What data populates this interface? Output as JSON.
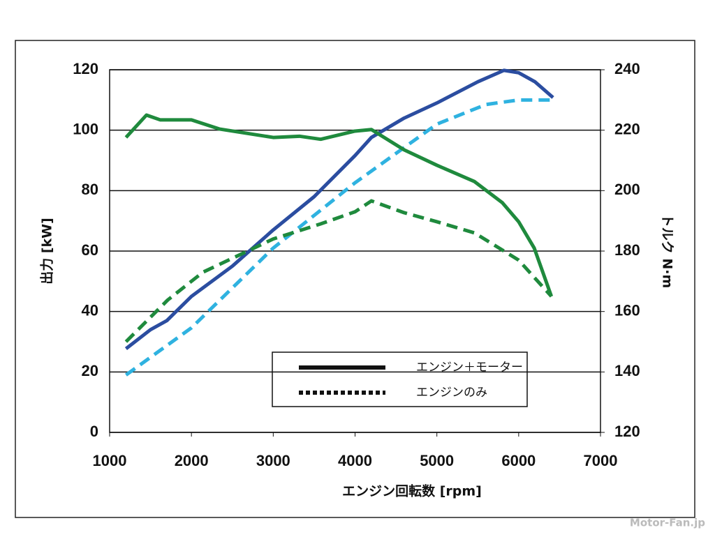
{
  "chart_data": {
    "type": "line",
    "xlabel": "エンジン回転数 [rpm]",
    "ylabel": "出力 [kW]",
    "y2label": "トルク N·m",
    "xlim": [
      1000,
      7000
    ],
    "xticks": [
      1000,
      2000,
      3000,
      4000,
      5000,
      6000,
      7000
    ],
    "ylim": [
      0,
      120
    ],
    "yticks": [
      0,
      20,
      40,
      60,
      80,
      100,
      120
    ],
    "y2lim": [
      120,
      240
    ],
    "y2ticks": [
      120,
      140,
      160,
      180,
      200,
      220,
      240
    ],
    "grid": true,
    "series": [
      {
        "color": "#2b4da0",
        "dashed": false,
        "axis": "y",
        "x": [
          1200,
          1500,
          1700,
          2000,
          2500,
          3000,
          3500,
          4000,
          4200,
          4600,
          5000,
          5500,
          5820,
          6000,
          6200,
          6420
        ],
        "values": [
          27.7,
          34,
          37,
          45,
          55,
          67,
          78,
          91.6,
          97.6,
          104,
          109,
          116,
          119.8,
          119,
          116,
          110.8
        ]
      },
      {
        "color": "#2fb2e0",
        "dashed": true,
        "axis": "y",
        "x": [
          1200,
          2000,
          3000,
          4000,
          5000,
          5600,
          6000,
          6420
        ],
        "values": [
          19,
          34.6,
          61,
          82.6,
          102,
          108.5,
          110,
          110
        ]
      },
      {
        "color": "#1f8a3d",
        "dashed": false,
        "axis": "y2",
        "x": [
          1200,
          1450,
          1620,
          2000,
          2340,
          3000,
          3320,
          3580,
          4000,
          4200,
          4600,
          5000,
          5460,
          5800,
          6000,
          6190,
          6400
        ],
        "values": [
          217.6,
          225,
          223.4,
          223.4,
          220.4,
          217.6,
          218,
          217,
          219.7,
          220.2,
          213.5,
          208.4,
          203,
          196,
          189.7,
          181,
          165
        ]
      },
      {
        "color": "#1f8a3d",
        "dashed": true,
        "axis": "y2",
        "x": [
          1200,
          1710,
          2140,
          3000,
          3580,
          4000,
          4200,
          4600,
          5000,
          5460,
          6000,
          6400
        ],
        "values": [
          150,
          163.8,
          173,
          184,
          189,
          193,
          196.6,
          192.7,
          189.7,
          186,
          177,
          165
        ]
      }
    ],
    "legend": [
      {
        "label": "エンジン＋モーター",
        "style": "solid"
      },
      {
        "label": "エンジンのみ",
        "style": "dotted"
      }
    ],
    "watermark": "Motor-Fan.jp"
  }
}
